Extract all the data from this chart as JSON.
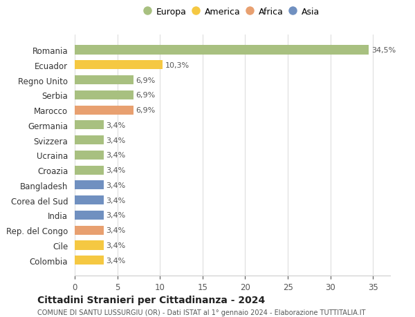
{
  "categories": [
    "Romania",
    "Ecuador",
    "Regno Unito",
    "Serbia",
    "Marocco",
    "Germania",
    "Svizzera",
    "Ucraina",
    "Croazia",
    "Bangladesh",
    "Corea del Sud",
    "India",
    "Rep. del Congo",
    "Cile",
    "Colombia"
  ],
  "values": [
    34.5,
    10.3,
    6.9,
    6.9,
    6.9,
    3.4,
    3.4,
    3.4,
    3.4,
    3.4,
    3.4,
    3.4,
    3.4,
    3.4,
    3.4
  ],
  "labels": [
    "34,5%",
    "10,3%",
    "6,9%",
    "6,9%",
    "6,9%",
    "3,4%",
    "3,4%",
    "3,4%",
    "3,4%",
    "3,4%",
    "3,4%",
    "3,4%",
    "3,4%",
    "3,4%",
    "3,4%"
  ],
  "colors": [
    "#a8c080",
    "#f5c842",
    "#a8c080",
    "#a8c080",
    "#e8a070",
    "#a8c080",
    "#a8c080",
    "#a8c080",
    "#a8c080",
    "#7090c0",
    "#7090c0",
    "#7090c0",
    "#e8a070",
    "#f5c842",
    "#f5c842"
  ],
  "legend_labels": [
    "Europa",
    "America",
    "Africa",
    "Asia"
  ],
  "legend_colors": [
    "#a8c080",
    "#f5c842",
    "#e8a070",
    "#7090c0"
  ],
  "title": "Cittadini Stranieri per Cittadinanza - 2024",
  "subtitle": "COMUNE DI SANTU LUSSURGIU (OR) - Dati ISTAT al 1° gennaio 2024 - Elaborazione TUTTITALIA.IT",
  "xlim": [
    0,
    37
  ],
  "xticks": [
    0,
    5,
    10,
    15,
    20,
    25,
    30,
    35
  ],
  "background_color": "#ffffff",
  "grid_color": "#dddddd",
  "bar_height": 0.6
}
